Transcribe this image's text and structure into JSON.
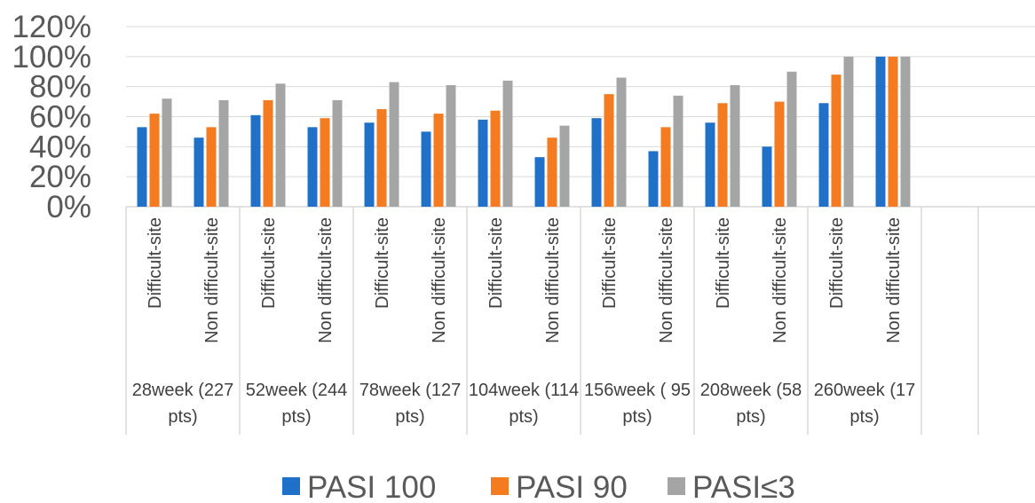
{
  "chart_data": {
    "type": "bar",
    "categories": [
      "Difficult-site",
      "Non difficult-site",
      "Difficult-site",
      "Non difficult-site",
      "Difficult-site",
      "Non difficult-site",
      "Difficult-site",
      "Non difficult-site",
      "Difficult-site",
      "Non difficult-site",
      "Difficult-site",
      "Non difficult-site",
      "Difficult-site",
      "Non difficult-site",
      null,
      null
    ],
    "groups": [
      "28week (227 pts)",
      "52week (244 pts)",
      "78week (127 pts)",
      "104week (114 pts)",
      "156week ( 95 pts)",
      "208week (58 pts)",
      "260week (17 pts)"
    ],
    "series": [
      {
        "name": "PASI 100",
        "color": "#1f70c8",
        "values": [
          53,
          46,
          61,
          53,
          56,
          50,
          58,
          33,
          59,
          37,
          56,
          40,
          69,
          100,
          null,
          null
        ]
      },
      {
        "name": "PASI 90",
        "color": "#f47b20",
        "values": [
          62,
          53,
          71,
          59,
          65,
          62,
          64,
          46,
          75,
          53,
          69,
          70,
          88,
          100,
          null,
          null
        ]
      },
      {
        "name": "PASI≤3",
        "color": "#a5a5a5",
        "values": [
          72,
          71,
          82,
          71,
          83,
          81,
          84,
          54,
          86,
          74,
          81,
          90,
          100,
          100,
          null,
          null
        ]
      }
    ],
    "ylim": [
      0,
      120
    ],
    "yticks": [
      {
        "value": 0,
        "label": "0%"
      },
      {
        "value": 20,
        "label": "20%"
      },
      {
        "value": 40,
        "label": "40%"
      },
      {
        "value": 60,
        "label": "60%"
      },
      {
        "value": 80,
        "label": "80%"
      },
      {
        "value": 100,
        "label": "100%"
      },
      {
        "value": 120,
        "label": "120%"
      }
    ],
    "grid": true,
    "legend": "bottom"
  }
}
